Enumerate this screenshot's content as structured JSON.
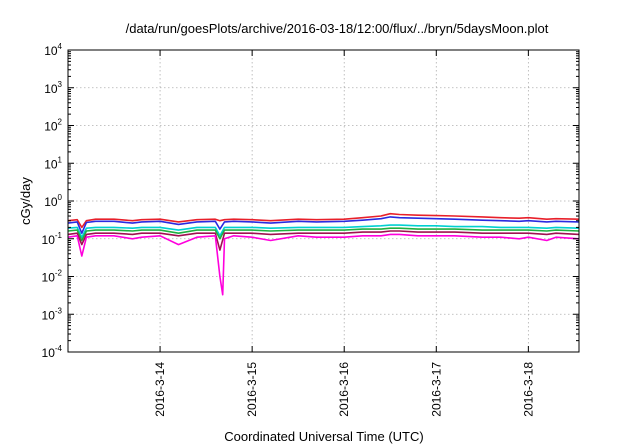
{
  "chart_data": {
    "type": "line",
    "title": "/data/run/goesPlots/archive/2016-03-18/12:00/flux/../bryn/5daysMoon.plot",
    "xlabel": "Coordinated Universal Time (UTC)",
    "ylabel": "cGy/day",
    "yscale": "log",
    "ylim": [
      0.0001,
      10000
    ],
    "xlim": [
      13.0,
      18.55
    ],
    "grid": true,
    "y_ticks": [
      {
        "mant": "10",
        "exp": "-4",
        "value": 0.0001
      },
      {
        "mant": "10",
        "exp": "-3",
        "value": 0.001
      },
      {
        "mant": "10",
        "exp": "-2",
        "value": 0.01
      },
      {
        "mant": "10",
        "exp": "-1",
        "value": 0.1
      },
      {
        "mant": "10",
        "exp": "0",
        "value": 1
      },
      {
        "mant": "10",
        "exp": "1",
        "value": 10
      },
      {
        "mant": "10",
        "exp": "2",
        "value": 100
      },
      {
        "mant": "10",
        "exp": "3",
        "value": 1000
      },
      {
        "mant": "10",
        "exp": "4",
        "value": 10000
      }
    ],
    "x_ticks": [
      {
        "label": "2016-3-14",
        "value": 14
      },
      {
        "label": "2016-3-15",
        "value": 15
      },
      {
        "label": "2016-3-16",
        "value": 16
      },
      {
        "label": "2016-3-17",
        "value": 17
      },
      {
        "label": "2016-3-18",
        "value": 18
      }
    ],
    "x_unit_note": "x values are days of March 2016",
    "series": [
      {
        "color": "#e8202a",
        "x": [
          13.0,
          13.1,
          13.15,
          13.2,
          13.3,
          13.5,
          13.7,
          13.8,
          14.0,
          14.2,
          14.4,
          14.6,
          14.65,
          14.7,
          14.8,
          15.0,
          15.2,
          15.5,
          15.7,
          16.0,
          16.2,
          16.4,
          16.5,
          16.6,
          16.8,
          17.0,
          17.2,
          17.5,
          17.7,
          17.9,
          18.0,
          18.2,
          18.3,
          18.55
        ],
        "y": [
          0.3,
          0.32,
          0.2,
          0.3,
          0.33,
          0.33,
          0.3,
          0.32,
          0.33,
          0.28,
          0.32,
          0.33,
          0.3,
          0.32,
          0.33,
          0.32,
          0.3,
          0.33,
          0.32,
          0.33,
          0.36,
          0.4,
          0.46,
          0.44,
          0.42,
          0.41,
          0.4,
          0.38,
          0.36,
          0.35,
          0.36,
          0.33,
          0.34,
          0.33
        ]
      },
      {
        "color": "#2a2ae0",
        "x": [
          13.0,
          13.1,
          13.15,
          13.2,
          13.3,
          13.5,
          13.7,
          13.8,
          14.0,
          14.2,
          14.4,
          14.6,
          14.65,
          14.7,
          14.8,
          15.0,
          15.2,
          15.5,
          15.7,
          16.0,
          16.2,
          16.4,
          16.5,
          16.6,
          16.8,
          17.0,
          17.2,
          17.5,
          17.7,
          17.9,
          18.0,
          18.2,
          18.3,
          18.55
        ],
        "y": [
          0.26,
          0.28,
          0.14,
          0.27,
          0.29,
          0.29,
          0.26,
          0.28,
          0.29,
          0.24,
          0.28,
          0.29,
          0.18,
          0.28,
          0.29,
          0.28,
          0.26,
          0.29,
          0.28,
          0.29,
          0.31,
          0.34,
          0.38,
          0.36,
          0.35,
          0.34,
          0.33,
          0.31,
          0.3,
          0.29,
          0.3,
          0.28,
          0.29,
          0.28
        ]
      },
      {
        "color": "#00d0d0",
        "x": [
          13.0,
          13.1,
          13.15,
          13.2,
          13.3,
          13.5,
          13.7,
          13.8,
          14.0,
          14.2,
          14.4,
          14.6,
          14.65,
          14.7,
          14.8,
          15.0,
          15.2,
          15.5,
          15.7,
          16.0,
          16.2,
          16.4,
          16.5,
          16.6,
          16.8,
          17.0,
          17.2,
          17.5,
          17.7,
          17.9,
          18.0,
          18.2,
          18.3,
          18.55
        ],
        "y": [
          0.19,
          0.2,
          0.11,
          0.19,
          0.2,
          0.2,
          0.19,
          0.2,
          0.2,
          0.17,
          0.2,
          0.2,
          0.12,
          0.2,
          0.2,
          0.2,
          0.19,
          0.2,
          0.2,
          0.2,
          0.21,
          0.22,
          0.23,
          0.23,
          0.22,
          0.22,
          0.21,
          0.21,
          0.2,
          0.2,
          0.2,
          0.19,
          0.2,
          0.19
        ]
      },
      {
        "color": "#20b040",
        "x": [
          13.0,
          13.1,
          13.15,
          13.2,
          13.3,
          13.5,
          13.7,
          13.8,
          14.0,
          14.2,
          14.4,
          14.6,
          14.65,
          14.7,
          14.8,
          15.0,
          15.2,
          15.5,
          15.7,
          16.0,
          16.2,
          16.4,
          16.5,
          16.6,
          16.8,
          17.0,
          17.2,
          17.5,
          17.7,
          17.9,
          18.0,
          18.2,
          18.3,
          18.55
        ],
        "y": [
          0.16,
          0.17,
          0.09,
          0.16,
          0.17,
          0.17,
          0.16,
          0.17,
          0.17,
          0.14,
          0.17,
          0.17,
          0.1,
          0.17,
          0.17,
          0.17,
          0.16,
          0.17,
          0.17,
          0.17,
          0.18,
          0.18,
          0.19,
          0.19,
          0.18,
          0.18,
          0.18,
          0.17,
          0.17,
          0.17,
          0.17,
          0.16,
          0.17,
          0.16
        ]
      },
      {
        "color": "#a01050",
        "x": [
          13.0,
          13.1,
          13.15,
          13.2,
          13.3,
          13.5,
          13.7,
          13.8,
          14.0,
          14.2,
          14.4,
          14.6,
          14.65,
          14.7,
          14.8,
          15.0,
          15.2,
          15.5,
          15.7,
          16.0,
          16.2,
          16.4,
          16.5,
          16.6,
          16.8,
          17.0,
          17.2,
          17.5,
          17.7,
          17.9,
          18.0,
          18.2,
          18.3,
          18.55
        ],
        "y": [
          0.13,
          0.14,
          0.07,
          0.13,
          0.14,
          0.14,
          0.13,
          0.14,
          0.14,
          0.12,
          0.14,
          0.14,
          0.05,
          0.14,
          0.14,
          0.14,
          0.13,
          0.14,
          0.14,
          0.14,
          0.15,
          0.15,
          0.16,
          0.16,
          0.15,
          0.15,
          0.15,
          0.14,
          0.14,
          0.14,
          0.14,
          0.13,
          0.14,
          0.13
        ]
      },
      {
        "color": "#ff00dd",
        "x": [
          13.0,
          13.1,
          13.15,
          13.2,
          13.3,
          13.5,
          13.7,
          13.8,
          14.0,
          14.2,
          14.4,
          14.6,
          14.65,
          14.68,
          14.7,
          14.8,
          15.0,
          15.2,
          15.5,
          15.7,
          16.0,
          16.2,
          16.4,
          16.5,
          16.6,
          16.8,
          17.0,
          17.2,
          17.5,
          17.7,
          17.9,
          18.0,
          18.2,
          18.3,
          18.55
        ],
        "y": [
          0.11,
          0.12,
          0.035,
          0.11,
          0.12,
          0.12,
          0.1,
          0.11,
          0.12,
          0.07,
          0.11,
          0.12,
          0.01,
          0.0033,
          0.1,
          0.12,
          0.11,
          0.09,
          0.12,
          0.11,
          0.11,
          0.12,
          0.12,
          0.13,
          0.13,
          0.12,
          0.12,
          0.12,
          0.11,
          0.11,
          0.1,
          0.11,
          0.09,
          0.11,
          0.1
        ]
      }
    ]
  }
}
